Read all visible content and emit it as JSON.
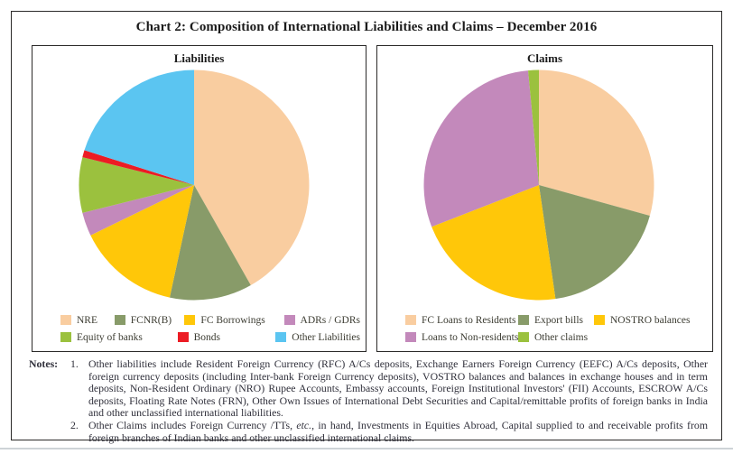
{
  "figure": {
    "title": "Chart 2: Composition of International Liabilities and Claims – December 2016"
  },
  "chart_data": [
    {
      "type": "pie",
      "title": "Liabilities",
      "labels": [
        "NRE",
        "FCNR(B)",
        "FC Borrowings",
        "ADRs / GDRs",
        "Equity of banks",
        "Bonds",
        "Other Liabilities"
      ],
      "values": [
        41.8,
        11.6,
        14.4,
        3.3,
        7.8,
        1.0,
        20.1
      ],
      "value_unit": "percent share (estimated from pie angles; no data labels shown)",
      "colors": [
        "#F9CDA0",
        "#889B69",
        "#FFC709",
        "#C389BB",
        "#9BC13E",
        "#EC1C24",
        "#5BC5F1"
      ],
      "start_angle_deg": 0,
      "direction": "clockwise",
      "legend_position": "bottom",
      "legend_rows": [
        [
          0,
          1,
          2,
          3
        ],
        [
          4,
          5,
          6
        ]
      ]
    },
    {
      "type": "pie",
      "title": "Claims",
      "labels": [
        "FC Loans to Residents",
        "Export bills",
        "NOSTRO balances",
        "Loans to Non-residents",
        "Other claims"
      ],
      "values": [
        29.3,
        18.4,
        21.4,
        29.4,
        1.5
      ],
      "value_unit": "percent share (estimated from pie angles; no data labels shown)",
      "colors": [
        "#F9CDA0",
        "#889B69",
        "#FFC709",
        "#C389BB",
        "#9BC13E"
      ],
      "start_angle_deg": 0,
      "direction": "clockwise",
      "legend_position": "bottom",
      "legend_rows": [
        [
          0,
          1,
          2
        ],
        [
          3,
          4
        ]
      ]
    }
  ],
  "notes": {
    "label": "Notes:",
    "items": [
      {
        "num": "1.",
        "text": "Other liabilities include Resident Foreign Currency (RFC) A/Cs deposits, Exchange Earners Foreign Currency (EEFC) A/Cs deposits, Other foreign currency deposits (including Inter-bank Foreign Currency deposits), VOSTRO balances and balances in exchange houses and in term deposits, Non-Resident Ordinary (NRO) Rupee Accounts, Embassy accounts, Foreign Institutional Investors' (FII) Accounts, ESCROW A/Cs deposits, Floating Rate Notes (FRN), Other Own Issues of International Debt Securities and Capital/remittable profits of foreign banks in India and other unclassified international liabilities."
      },
      {
        "num": "2.",
        "pre_italic": "Other Claims includes Foreign Currency /TTs, ",
        "italic": "etc.",
        "post_italic": ", in hand, Investments in Equities Abroad, Capital supplied to and receivable profits from foreign branches of Indian banks and other unclassified international claims."
      }
    ]
  }
}
